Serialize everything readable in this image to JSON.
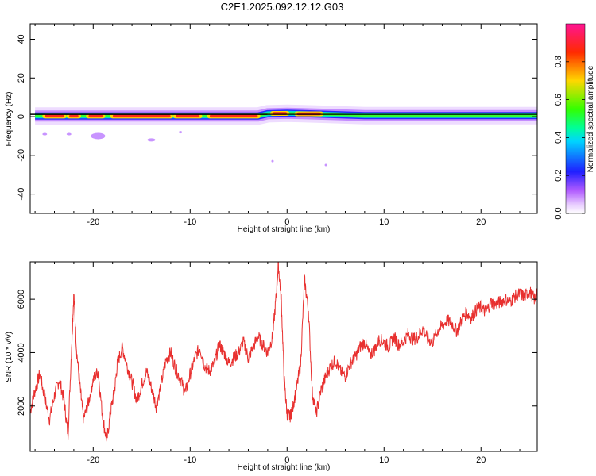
{
  "title": "C2E1.2025.092.12.12.G03",
  "chart_data": [
    {
      "type": "heatmap",
      "xlabel": "Height of straight line (km)",
      "ylabel": "Frequency (Hz)",
      "xlim": [
        -26.5,
        25.8
      ],
      "ylim": [
        -50,
        48
      ],
      "xticks": [
        -20,
        -10,
        0,
        10,
        20
      ],
      "yticks": [
        40,
        20,
        0,
        -20,
        -40
      ],
      "xticklabels": [
        "-20",
        "-10",
        "0",
        "10",
        "20"
      ],
      "yticklabels": [
        "40",
        "20",
        "0",
        "-20",
        "-40"
      ],
      "ridge": [
        {
          "x": -26,
          "f": 0.3
        },
        {
          "x": -22,
          "f": 0.3
        },
        {
          "x": -18,
          "f": 0.3
        },
        {
          "x": -14,
          "f": 0.3
        },
        {
          "x": -10,
          "f": 0.3
        },
        {
          "x": -6,
          "f": 0.3
        },
        {
          "x": -3,
          "f": 0.3
        },
        {
          "x": -2,
          "f": 1.5
        },
        {
          "x": 0,
          "f": 1.8
        },
        {
          "x": 2,
          "f": 1.5
        },
        {
          "x": 4,
          "f": 1.2
        },
        {
          "x": 8,
          "f": 0.5
        },
        {
          "x": 14,
          "f": 0.5
        },
        {
          "x": 20,
          "f": 0.5
        },
        {
          "x": 25.8,
          "f": 0.5
        }
      ],
      "hot_segments": [
        [
          -25,
          -23
        ],
        [
          -22.5,
          -21.5
        ],
        [
          -20.5,
          -19
        ],
        [
          -18,
          -12
        ],
        [
          -11.5,
          -9
        ],
        [
          -8,
          -3
        ],
        [
          -1.5,
          0
        ],
        [
          1,
          3.5
        ]
      ],
      "colorbar": {
        "label": "Normalized spectral amplitude",
        "range": [
          0,
          1
        ],
        "ticks": [
          0.0,
          0.2,
          0.4,
          0.6,
          0.8
        ],
        "ticklabels": [
          "0.0",
          "0.2",
          "0.4",
          "0.6",
          "0.8"
        ]
      }
    },
    {
      "type": "line",
      "xlabel": "Height of straight line (km)",
      "ylabel": "SNR (10 * v/v)",
      "xlim": [
        -26.5,
        25.8
      ],
      "ylim": [
        300,
        7400
      ],
      "xticks": [
        -20,
        -10,
        0,
        10,
        20
      ],
      "yticks": [
        6000,
        4000,
        2000
      ],
      "xticklabels": [
        "-20",
        "-10",
        "0",
        "10",
        "20"
      ],
      "yticklabels": [
        "6000",
        "4000",
        "2000"
      ],
      "color": "#e8302f",
      "series_points": [
        [
          -26.5,
          1800
        ],
        [
          -26,
          2600
        ],
        [
          -25.5,
          3200
        ],
        [
          -25,
          2300
        ],
        [
          -24.5,
          1500
        ],
        [
          -24,
          2400
        ],
        [
          -23.5,
          3000
        ],
        [
          -23,
          2200
        ],
        [
          -22.6,
          900
        ],
        [
          -22.2,
          4500
        ],
        [
          -22,
          6200
        ],
        [
          -21.7,
          4000
        ],
        [
          -21.3,
          2500
        ],
        [
          -21,
          1500
        ],
        [
          -20.5,
          2100
        ],
        [
          -20,
          3000
        ],
        [
          -19.5,
          3300
        ],
        [
          -19,
          1500
        ],
        [
          -18.6,
          700
        ],
        [
          -18.2,
          1800
        ],
        [
          -17.8,
          2600
        ],
        [
          -17.5,
          3600
        ],
        [
          -17,
          4200
        ],
        [
          -16.5,
          3500
        ],
        [
          -16,
          2900
        ],
        [
          -15.5,
          2200
        ],
        [
          -15,
          2800
        ],
        [
          -14.5,
          3300
        ],
        [
          -14,
          2700
        ],
        [
          -13.5,
          2000
        ],
        [
          -13,
          2800
        ],
        [
          -12.5,
          3700
        ],
        [
          -12,
          4000
        ],
        [
          -11.5,
          3400
        ],
        [
          -11,
          3000
        ],
        [
          -10.5,
          2500
        ],
        [
          -10,
          3200
        ],
        [
          -9.5,
          3800
        ],
        [
          -9,
          4200
        ],
        [
          -8.5,
          3500
        ],
        [
          -8,
          3300
        ],
        [
          -7.5,
          3600
        ],
        [
          -7,
          4300
        ],
        [
          -6.5,
          4000
        ],
        [
          -6,
          3600
        ],
        [
          -5.5,
          3800
        ],
        [
          -5,
          4000
        ],
        [
          -4.5,
          4400
        ],
        [
          -4,
          3800
        ],
        [
          -3.5,
          4200
        ],
        [
          -3,
          4600
        ],
        [
          -2.5,
          4300
        ],
        [
          -2,
          4000
        ],
        [
          -1.5,
          4600
        ],
        [
          -1.2,
          5800
        ],
        [
          -0.9,
          7300
        ],
        [
          -0.6,
          6000
        ],
        [
          -0.3,
          3000
        ],
        [
          0,
          1700
        ],
        [
          0.3,
          1600
        ],
        [
          0.6,
          2000
        ],
        [
          1,
          2700
        ],
        [
          1.4,
          3600
        ],
        [
          1.8,
          6700
        ],
        [
          2.2,
          5600
        ],
        [
          2.6,
          2500
        ],
        [
          3,
          1700
        ],
        [
          3.5,
          2600
        ],
        [
          4,
          3100
        ],
        [
          4.5,
          3500
        ],
        [
          5,
          3700
        ],
        [
          5.5,
          3300
        ],
        [
          6,
          3100
        ],
        [
          6.5,
          3600
        ],
        [
          7,
          3800
        ],
        [
          7.5,
          4200
        ],
        [
          8,
          4400
        ],
        [
          8.5,
          3900
        ],
        [
          9,
          4100
        ],
        [
          9.5,
          4500
        ],
        [
          10,
          4400
        ],
        [
          10.5,
          4200
        ],
        [
          11,
          4600
        ],
        [
          11.5,
          4300
        ],
        [
          12,
          4400
        ],
        [
          12.5,
          4700
        ],
        [
          13,
          4500
        ],
        [
          13.5,
          4600
        ],
        [
          14,
          4900
        ],
        [
          14.5,
          4500
        ],
        [
          15,
          4400
        ],
        [
          15.5,
          4800
        ],
        [
          16,
          5000
        ],
        [
          16.5,
          5200
        ],
        [
          17,
          5100
        ],
        [
          17.5,
          4800
        ],
        [
          18,
          5200
        ],
        [
          18.5,
          5500
        ],
        [
          19,
          5300
        ],
        [
          19.5,
          5600
        ],
        [
          20,
          5700
        ],
        [
          20.5,
          5500
        ],
        [
          21,
          5900
        ],
        [
          21.5,
          5800
        ],
        [
          22,
          5900
        ],
        [
          22.5,
          6000
        ],
        [
          23,
          5900
        ],
        [
          23.5,
          6100
        ],
        [
          24,
          6200
        ],
        [
          24.5,
          6100
        ],
        [
          25,
          6300
        ],
        [
          25.5,
          6000
        ],
        [
          25.8,
          6200
        ]
      ]
    }
  ]
}
